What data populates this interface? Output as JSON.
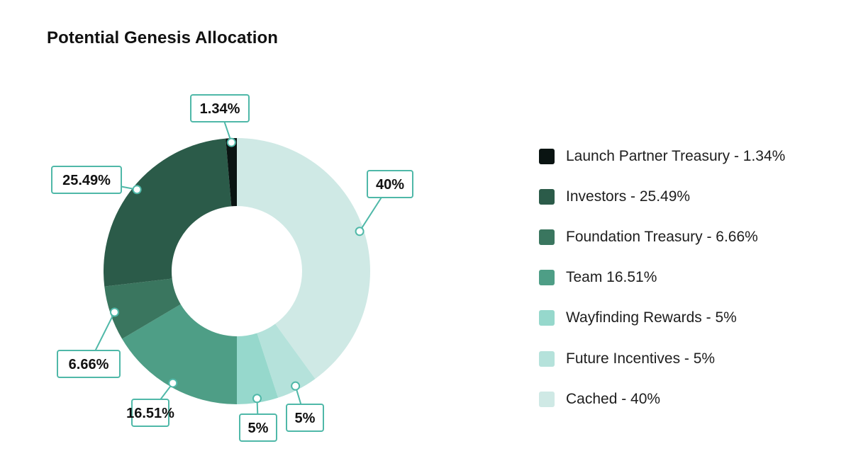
{
  "chart_data": {
    "type": "pie",
    "variant": "donut",
    "title": "Potential Genesis Allocation",
    "start_angle_deg": 0,
    "direction": "clockwise",
    "slices": [
      {
        "legend": "Cached - 40%",
        "value": 40,
        "label": "40%",
        "color": "#cfe9e5",
        "callout": "upper-right"
      },
      {
        "legend": "Future Incentives - 5%",
        "value": 5,
        "label": "5%",
        "color": "#b5e2db",
        "callout": "below"
      },
      {
        "legend": "Wayfinding Rewards - 5%",
        "value": 5,
        "label": "5%",
        "color": "#96d8cc",
        "callout": "below"
      },
      {
        "legend": "Team 16.51%",
        "value": 16.51,
        "label": "16.51%",
        "color": "#4e9e86",
        "callout": "below"
      },
      {
        "legend": "Foundation Treasury - 6.66%",
        "value": 6.66,
        "label": "6.66%",
        "color": "#3a765f",
        "callout": "lower-left"
      },
      {
        "legend": "Investors - 25.49%",
        "value": 25.49,
        "label": "25.49%",
        "color": "#2b5b49",
        "callout": "upper-left"
      },
      {
        "legend": "Launch Partner Treasury - 1.34%",
        "value": 1.34,
        "label": "1.34%",
        "color": "#0a1412",
        "callout": "above"
      }
    ],
    "legend_order": [
      6,
      5,
      4,
      3,
      2,
      1,
      0
    ],
    "legend_position": "right",
    "callout_border_color": "#4fb8a8"
  }
}
